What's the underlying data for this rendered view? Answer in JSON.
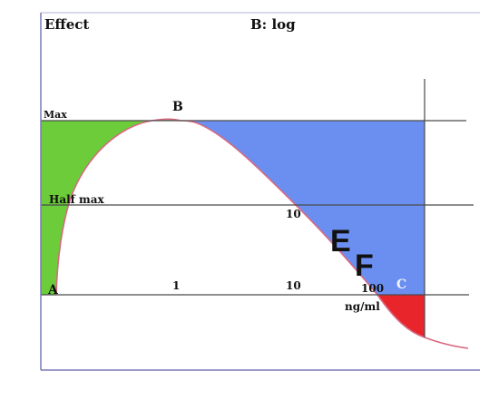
{
  "header": {
    "y_axis_title": "Effect",
    "scale_label": "B: log"
  },
  "levels": {
    "max": "Max",
    "half_max": "Half max"
  },
  "points": {
    "a": "A",
    "b": "B",
    "c": "C",
    "e": "E",
    "f": "F"
  },
  "ticks": {
    "lower_1": "1",
    "lower_10": "10",
    "lower_100": "100",
    "upper_10": "10"
  },
  "unit": "ng/ml",
  "colors": {
    "green_region": "#6ccc3a",
    "blue_region": "#6b8ff0",
    "red_region": "#e8252b",
    "curve": "#d86a80",
    "axis_frame": "#7a7ab8",
    "lines": "#4a4a4a"
  }
}
